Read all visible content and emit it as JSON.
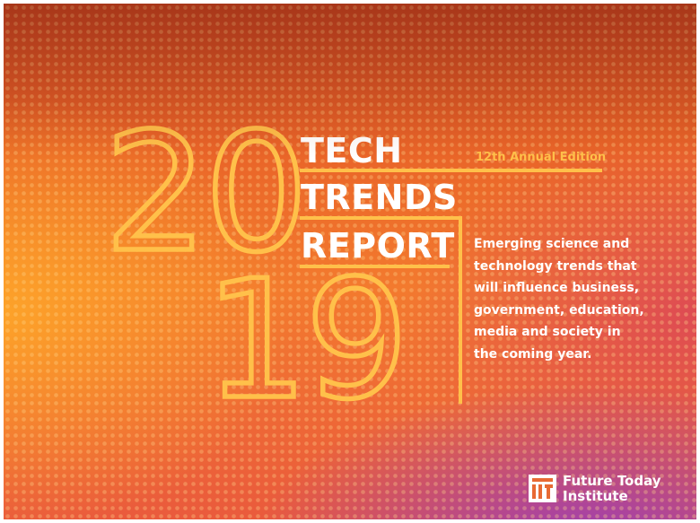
{
  "cover": {
    "year_top": "20",
    "year_bottom": "19",
    "title_line1": "TECH",
    "title_line2": "TRENDS",
    "title_line3": "REPORT",
    "edition": "12th Annual Edition",
    "description": "Emerging science and technology trends that will influence business, government, education, media and society in the coming year.",
    "accent_color": "#ffc04a"
  },
  "logo": {
    "icon": "future-today-institute-icon",
    "line1": "Future Today",
    "line2": "Institute"
  }
}
